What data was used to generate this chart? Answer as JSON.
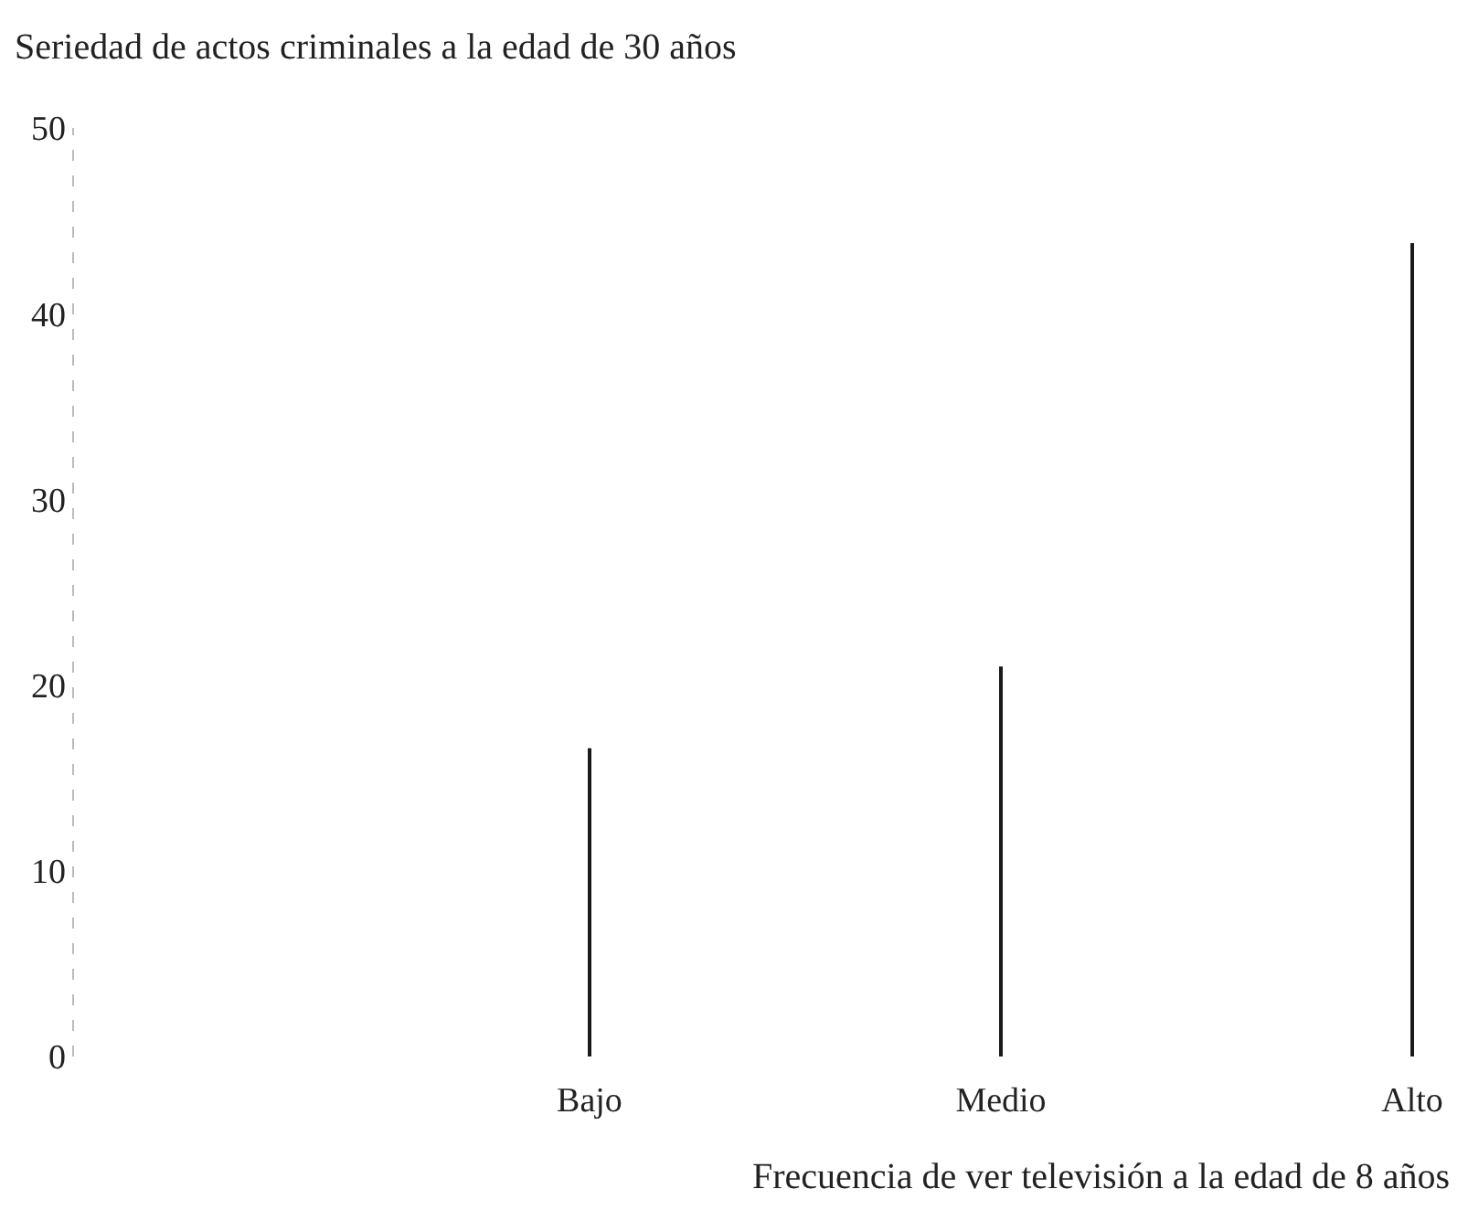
{
  "chart_data": {
    "type": "bar",
    "title": "Seriedad de actos criminales a la edad de 30 años",
    "xlabel": "Frecuencia de ver televisión a la edad de 8 años",
    "categories": [
      "Bajo",
      "Medio",
      "Alto"
    ],
    "values": [
      16.6,
      21,
      43.8
    ],
    "color": "#1a1a1a",
    "ylim": [
      0,
      50
    ],
    "yticks": [
      0,
      10,
      20,
      30,
      40,
      50
    ],
    "grid": false
  }
}
